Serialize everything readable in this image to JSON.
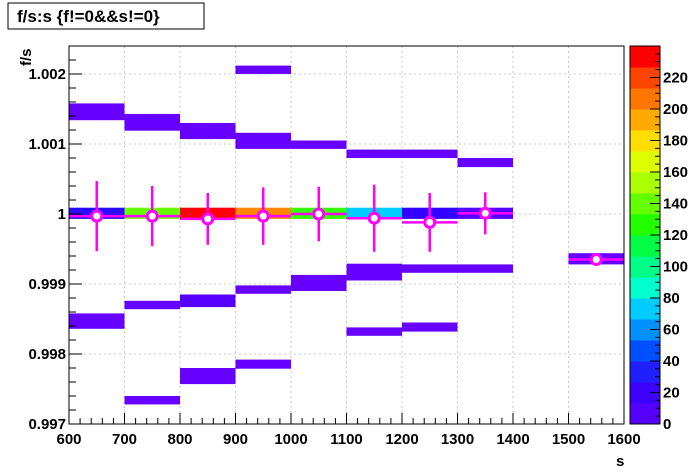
{
  "chart_data": {
    "type": "heatmap",
    "title": "f/s:s {f!=0&&s!=0}",
    "xlabel": "s",
    "ylabel": "f/s",
    "xlim": [
      600,
      1600
    ],
    "ylim": [
      0.997,
      1.0024
    ],
    "x_ticks": [
      "600",
      "700",
      "800",
      "900",
      "1000",
      "1100",
      "1200",
      "1300",
      "1400",
      "1500",
      "1600"
    ],
    "y_ticks": [
      {
        "value": 0.997,
        "label": "0.997"
      },
      {
        "value": 0.998,
        "label": "0.998"
      },
      {
        "value": 0.999,
        "label": "0.999"
      },
      {
        "value": 1.0,
        "label": "1"
      },
      {
        "value": 1.001,
        "label": "1.001"
      },
      {
        "value": 1.002,
        "label": "1.002"
      }
    ],
    "grid": true,
    "colorbar": {
      "min": 0,
      "max": 240,
      "tick_values": [
        0,
        20,
        40,
        60,
        80,
        100,
        120,
        140,
        160,
        180,
        200,
        220
      ],
      "tick_labels": [
        "0",
        "20",
        "40",
        "60",
        "80",
        "100",
        "120",
        "140",
        "160",
        "180",
        "200",
        "220"
      ],
      "colors": [
        "#5500ff",
        "#3b00ff",
        "#2020ff",
        "#0050ff",
        "#0090ff",
        "#00ccff",
        "#00ffcc",
        "#00ff88",
        "#00ff44",
        "#22ff00",
        "#66ff00",
        "#aaff00",
        "#ddff00",
        "#ffdd00",
        "#ffaa00",
        "#ff7700",
        "#ff4400",
        "#ff0000"
      ]
    },
    "cells": [
      {
        "x0": 600,
        "x1": 700,
        "y0": 1.00134,
        "y1": 1.00158,
        "color": "#6600ff"
      },
      {
        "x0": 600,
        "x1": 700,
        "y0": 0.99993,
        "y1": 1.00009,
        "color": "#2a0aff"
      },
      {
        "x0": 600,
        "x1": 700,
        "y0": 0.99836,
        "y1": 0.99858,
        "color": "#6600ff"
      },
      {
        "x0": 700,
        "x1": 800,
        "y0": 1.00119,
        "y1": 1.00143,
        "color": "#6600ff"
      },
      {
        "x0": 700,
        "x1": 800,
        "y0": 0.99993,
        "y1": 1.00009,
        "color": "#66ff00"
      },
      {
        "x0": 700,
        "x1": 800,
        "y0": 0.99864,
        "y1": 0.99876,
        "color": "#6600ff"
      },
      {
        "x0": 700,
        "x1": 800,
        "y0": 0.99728,
        "y1": 0.9974,
        "color": "#6600ff"
      },
      {
        "x0": 800,
        "x1": 900,
        "y0": 1.00107,
        "y1": 1.0013,
        "color": "#6600ff"
      },
      {
        "x0": 800,
        "x1": 900,
        "y0": 0.99993,
        "y1": 1.00009,
        "color": "#ff0000"
      },
      {
        "x0": 800,
        "x1": 900,
        "y0": 0.99867,
        "y1": 0.99885,
        "color": "#5500ff"
      },
      {
        "x0": 800,
        "x1": 900,
        "y0": 0.99757,
        "y1": 0.9978,
        "color": "#6600ff"
      },
      {
        "x0": 900,
        "x1": 1000,
        "y0": 1.002,
        "y1": 1.00212,
        "color": "#6600ff"
      },
      {
        "x0": 900,
        "x1": 1000,
        "y0": 1.00093,
        "y1": 1.00116,
        "color": "#6600ff"
      },
      {
        "x0": 900,
        "x1": 1000,
        "y0": 0.99993,
        "y1": 1.00009,
        "color": "#ff8800"
      },
      {
        "x0": 900,
        "x1": 1000,
        "y0": 0.99886,
        "y1": 0.99898,
        "color": "#6600ff"
      },
      {
        "x0": 900,
        "x1": 1000,
        "y0": 0.99779,
        "y1": 0.99792,
        "color": "#6600ff"
      },
      {
        "x0": 1000,
        "x1": 1100,
        "y0": 1.00093,
        "y1": 1.00105,
        "color": "#6600ff"
      },
      {
        "x0": 1000,
        "x1": 1100,
        "y0": 0.99993,
        "y1": 1.00009,
        "color": "#33ff00"
      },
      {
        "x0": 1000,
        "x1": 1100,
        "y0": 0.9989,
        "y1": 0.99913,
        "color": "#6600ff"
      },
      {
        "x0": 1100,
        "x1": 1200,
        "y0": 1.0008,
        "y1": 1.00092,
        "color": "#6600ff"
      },
      {
        "x0": 1100,
        "x1": 1200,
        "y0": 0.99993,
        "y1": 1.00009,
        "color": "#00ccff"
      },
      {
        "x0": 1100,
        "x1": 1200,
        "y0": 0.99905,
        "y1": 0.99929,
        "color": "#6600ff"
      },
      {
        "x0": 1100,
        "x1": 1200,
        "y0": 0.99826,
        "y1": 0.99838,
        "color": "#6600ff"
      },
      {
        "x0": 1200,
        "x1": 1300,
        "y0": 1.0008,
        "y1": 1.00092,
        "color": "#6600ff"
      },
      {
        "x0": 1200,
        "x1": 1300,
        "y0": 0.99993,
        "y1": 1.00009,
        "color": "#3300ff"
      },
      {
        "x0": 1200,
        "x1": 1300,
        "y0": 0.99916,
        "y1": 0.99928,
        "color": "#6600ff"
      },
      {
        "x0": 1200,
        "x1": 1300,
        "y0": 0.99832,
        "y1": 0.99845,
        "color": "#6600ff"
      },
      {
        "x0": 1300,
        "x1": 1400,
        "y0": 1.00067,
        "y1": 1.0008,
        "color": "#6600ff"
      },
      {
        "x0": 1300,
        "x1": 1400,
        "y0": 0.99993,
        "y1": 1.00009,
        "color": "#5500ff"
      },
      {
        "x0": 1300,
        "x1": 1400,
        "y0": 0.99916,
        "y1": 0.99928,
        "color": "#6600ff"
      },
      {
        "x0": 1500,
        "x1": 1600,
        "y0": 0.99928,
        "y1": 0.99944,
        "color": "#6600ff"
      }
    ],
    "profile": [
      {
        "x": 650,
        "xerr": 50,
        "y": 0.99997,
        "yerr": 0.0005
      },
      {
        "x": 750,
        "xerr": 50,
        "y": 0.99997,
        "yerr": 0.00043
      },
      {
        "x": 850,
        "xerr": 50,
        "y": 0.99993,
        "yerr": 0.00037
      },
      {
        "x": 950,
        "xerr": 50,
        "y": 0.99997,
        "yerr": 0.00041
      },
      {
        "x": 1050,
        "xerr": 50,
        "y": 1.0,
        "yerr": 0.00039
      },
      {
        "x": 1150,
        "xerr": 50,
        "y": 0.99994,
        "yerr": 0.00048
      },
      {
        "x": 1250,
        "xerr": 50,
        "y": 0.99988,
        "yerr": 0.00042
      },
      {
        "x": 1350,
        "xerr": 50,
        "y": 1.00001,
        "yerr": 0.0003
      },
      {
        "x": 1550,
        "xerr": 50,
        "y": 0.99935,
        "yerr": 5e-05
      }
    ],
    "profile_color": "#ff00ff"
  }
}
